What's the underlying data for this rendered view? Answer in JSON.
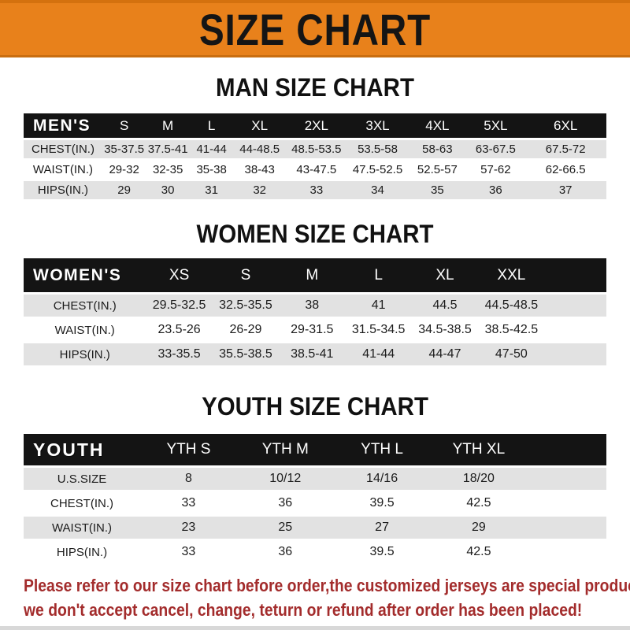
{
  "banner": {
    "title": "SIZE CHART"
  },
  "sections": [
    {
      "heading": "MAN SIZE CHART",
      "table": {
        "header_label": "MEN'S",
        "columns": [
          "S",
          "M",
          "L",
          "XL",
          "2XL",
          "3XL",
          "4XL",
          "5XL",
          "6XL"
        ],
        "rows": [
          {
            "label": "CHEST(IN.)",
            "values": [
              "35-37.5",
              "37.5-41",
              "41-44",
              "44-48.5",
              "48.5-53.5",
              "53.5-58",
              "58-63",
              "63-67.5",
              "67.5-72"
            ]
          },
          {
            "label": "WAIST(IN.)",
            "values": [
              "29-32",
              "32-35",
              "35-38",
              "38-43",
              "43-47.5",
              "47.5-52.5",
              "52.5-57",
              "57-62",
              "62-66.5"
            ]
          },
          {
            "label": "HIPS(IN.)",
            "values": [
              "29",
              "30",
              "31",
              "32",
              "33",
              "34",
              "35",
              "36",
              "37"
            ]
          }
        ]
      }
    },
    {
      "heading": "WOMEN SIZE CHART",
      "table": {
        "header_label": "WOMEN'S",
        "columns": [
          "XS",
          "S",
          "M",
          "L",
          "XL",
          "XXL"
        ],
        "rows": [
          {
            "label": "CHEST(IN.)",
            "values": [
              "29.5-32.5",
              "32.5-35.5",
              "38",
              "41",
              "44.5",
              "44.5-48.5"
            ]
          },
          {
            "label": "WAIST(IN.)",
            "values": [
              "23.5-26",
              "26-29",
              "29-31.5",
              "31.5-34.5",
              "34.5-38.5",
              "38.5-42.5"
            ]
          },
          {
            "label": "HIPS(IN.)",
            "values": [
              "33-35.5",
              "35.5-38.5",
              "38.5-41",
              "41-44",
              "44-47",
              "47-50"
            ]
          }
        ]
      }
    },
    {
      "heading": "YOUTH SIZE CHART",
      "table": {
        "header_label": "YOUTH",
        "columns": [
          "YTH S",
          "YTH M",
          "YTH L",
          "YTH XL"
        ],
        "rows": [
          {
            "label": "U.S.SIZE",
            "values": [
              "8",
              "10/12",
              "14/16",
              "18/20"
            ]
          },
          {
            "label": "CHEST(IN.)",
            "values": [
              "33",
              "36",
              "39.5",
              "42.5"
            ]
          },
          {
            "label": "WAIST(IN.)",
            "values": [
              "23",
              "25",
              "27",
              "29"
            ]
          },
          {
            "label": "HIPS(IN.)",
            "values": [
              "33",
              "36",
              "39.5",
              "42.5"
            ]
          }
        ]
      }
    }
  ],
  "footer": {
    "line1": "Please refer to our size chart before order,the customized jerseys are special products,",
    "line2": "we don't accept cancel, change, teturn or refund after order has been placed!"
  },
  "colors": {
    "banner_orange": "#E8811B",
    "header_bar_black": "#141414",
    "row_gray": "#E2E2E2",
    "notice_red": "#A32C2C"
  }
}
